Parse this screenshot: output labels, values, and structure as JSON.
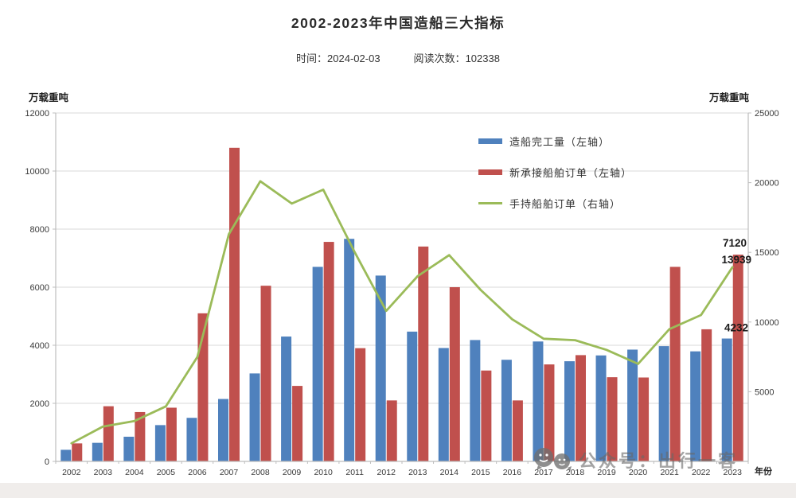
{
  "page": {
    "title": "2002-2023年中国造船三大指标",
    "meta": {
      "time_label": "时间：",
      "time_value": "2024-02-03",
      "reads_label": "阅读次数：",
      "reads_value": "102338"
    },
    "watermark_text": "公众号：出行一客",
    "colors": {
      "bar_blue": "#4f81bd",
      "bar_red": "#c0504d",
      "line_green": "#9bbb59",
      "grid": "#d9d9d9",
      "axis": "#bdbdbd",
      "tick_text": "#3a3a3a",
      "annotation_text": "#1a1a1a",
      "watermark_gray": "#6f6f6f"
    }
  },
  "chart_data": {
    "type": "bar",
    "subtype": "grouped-bars-with-line",
    "title": "2002-2023年中国造船三大指标",
    "categories": [
      "2002",
      "2003",
      "2004",
      "2005",
      "2006",
      "2007",
      "2008",
      "2009",
      "2010",
      "2011",
      "2012",
      "2013",
      "2014",
      "2015",
      "2016",
      "2017",
      "2018",
      "2019",
      "2020",
      "2021",
      "2022",
      "2023"
    ],
    "series": [
      {
        "name": "造船完工量（左轴）",
        "type": "bar",
        "axis": "left",
        "color": "#4f81bd",
        "values": [
          400,
          640,
          850,
          1250,
          1500,
          2150,
          3030,
          4300,
          6700,
          7665,
          6400,
          4470,
          3905,
          4180,
          3500,
          4130,
          3450,
          3650,
          3850,
          3970,
          3790,
          4232
        ]
      },
      {
        "name": "新承接船舶订单（左轴）",
        "type": "bar",
        "axis": "left",
        "color": "#c0504d",
        "values": [
          620,
          1900,
          1700,
          1850,
          5100,
          10800,
          6050,
          2600,
          7560,
          3900,
          2100,
          7400,
          6000,
          3130,
          2100,
          3340,
          3660,
          2900,
          2890,
          6700,
          4550,
          7120
        ]
      },
      {
        "name": "手持船舶订单（右轴）",
        "type": "line",
        "axis": "right",
        "color": "#9bbb59",
        "values": [
          1300,
          2500,
          2900,
          3950,
          7500,
          16300,
          20100,
          18500,
          19500,
          15000,
          10800,
          13300,
          14800,
          12300,
          10200,
          8800,
          8700,
          8000,
          7000,
          9500,
          10500,
          13939
        ]
      }
    ],
    "left_axis": {
      "title": "万载重吨",
      "min": 0,
      "max": 12000,
      "ticks": [
        0,
        2000,
        4000,
        6000,
        8000,
        10000,
        12000
      ]
    },
    "right_axis": {
      "title": "万载重吨",
      "min": 0,
      "max": 25000,
      "ticks": [
        5000,
        10000,
        15000,
        20000,
        25000
      ]
    },
    "x_axis_title": "年份",
    "grid": true,
    "legend_position": "inside-top-right",
    "annotations": [
      {
        "text": "7120",
        "value": 7120,
        "axis": "left",
        "category": "2023",
        "dy": -10,
        "x_end": 938
      },
      {
        "text": "13939",
        "value": 13939,
        "axis": "right",
        "category": "2023",
        "dy": -5,
        "x_end": 944
      },
      {
        "text": "4232",
        "value": 4232,
        "axis": "left",
        "category": "2023",
        "dy": -9,
        "x_end": 940
      }
    ]
  }
}
